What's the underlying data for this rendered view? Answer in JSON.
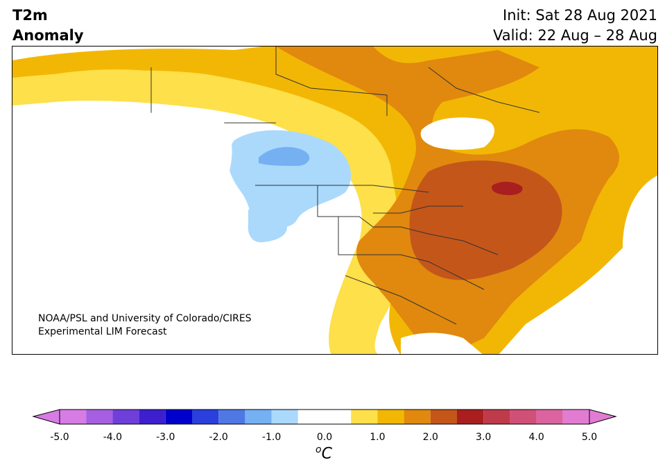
{
  "title": {
    "line1": "T2m",
    "line2": "Anomaly"
  },
  "info": {
    "init": "Init: Sat 28 Aug 2021",
    "valid": "Valid: 22 Aug – 28 Aug"
  },
  "credit": {
    "line1": "NOAA/PSL and University of Colorado/CIRES",
    "line2": "Experimental LIM Forecast"
  },
  "colorbar": {
    "ticks": [
      "-5.0",
      "-4.0",
      "-3.0",
      "-2.0",
      "-1.0",
      "0.0",
      "1.0",
      "2.0",
      "3.0",
      "4.0",
      "5.0"
    ],
    "unit_base": "C",
    "unit_sup": "o",
    "levels": [
      -5.0,
      -4.5,
      -4.0,
      -3.5,
      -3.0,
      -2.5,
      -2.0,
      -1.5,
      -1.0,
      -0.5,
      0.5,
      1.0,
      1.5,
      2.0,
      2.5,
      3.0,
      3.5,
      4.0,
      4.5,
      5.0
    ],
    "colors": [
      "#d77ce5",
      "#a65fe0",
      "#6f3fd9",
      "#3d1fcf",
      "#0000cc",
      "#2a3fdb",
      "#4f78e4",
      "#75b0f3",
      "#aad9fb",
      "#ffffff",
      "#fde04a",
      "#f2b705",
      "#e0890e",
      "#c4561a",
      "#a91f1f",
      "#bf3a4a",
      "#d15078",
      "#db64a0",
      "#e27cd3"
    ],
    "under_color": "#d77ce5",
    "over_color": "#e27cd3"
  },
  "legend_colors": {
    "land": "#ffffff",
    "ocean": "#ffffff",
    "border": "#333333"
  }
}
